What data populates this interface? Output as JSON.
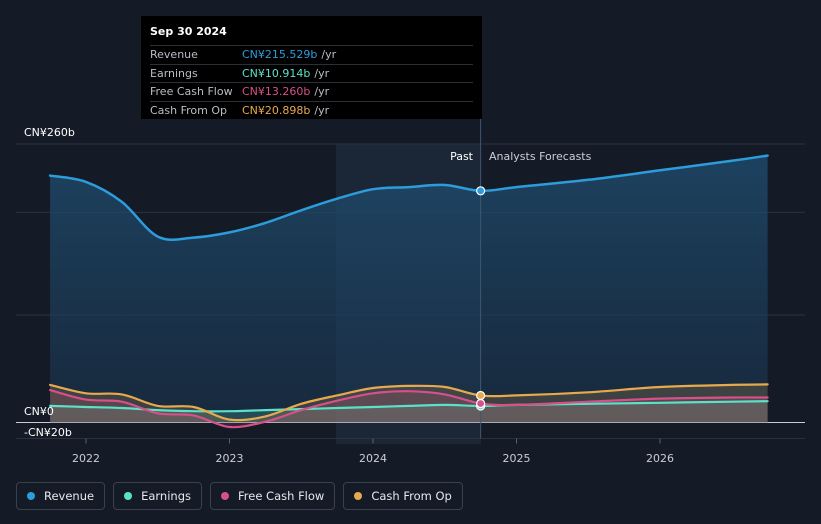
{
  "tooltip": {
    "date": "Sep 30 2024",
    "rows": [
      {
        "label": "Revenue",
        "value": "CN¥215.529b",
        "unit": "/yr",
        "color": "#2d9cdb"
      },
      {
        "label": "Earnings",
        "value": "CN¥10.914b",
        "unit": "/yr",
        "color": "#5ce1c9"
      },
      {
        "label": "Free Cash Flow",
        "value": "CN¥13.260b",
        "unit": "/yr",
        "color": "#d6508a"
      },
      {
        "label": "Cash From Op",
        "value": "CN¥20.898b",
        "unit": "/yr",
        "color": "#e8a94e"
      }
    ]
  },
  "chart_data": {
    "type": "line",
    "y_top_label": "CN¥260b",
    "y_zero_label": "CN¥0",
    "y_neg_label": "-CN¥20b",
    "ylim": [
      -20,
      260
    ],
    "past_label": "Past",
    "forecast_label": "Analysts Forecasts",
    "divider_x": 2024.75,
    "x_ticks": [
      {
        "value": 2022,
        "label": "2022"
      },
      {
        "value": 2023,
        "label": "2023"
      },
      {
        "value": 2024,
        "label": "2024"
      },
      {
        "value": 2025,
        "label": "2025"
      },
      {
        "value": 2026,
        "label": "2026"
      }
    ],
    "series": [
      {
        "name": "Revenue",
        "color": "#2d9cdb",
        "points": [
          [
            2021.75,
            230
          ],
          [
            2022.0,
            224
          ],
          [
            2022.25,
            205
          ],
          [
            2022.5,
            172
          ],
          [
            2022.75,
            171
          ],
          [
            2023.0,
            176
          ],
          [
            2023.25,
            185
          ],
          [
            2023.5,
            197
          ],
          [
            2023.75,
            208
          ],
          [
            2024.0,
            217
          ],
          [
            2024.25,
            219
          ],
          [
            2024.5,
            221
          ],
          [
            2024.75,
            215.5
          ],
          [
            2025.0,
            219
          ],
          [
            2025.5,
            226
          ],
          [
            2026.0,
            235
          ],
          [
            2026.5,
            244
          ],
          [
            2026.75,
            249
          ]
        ]
      },
      {
        "name": "Earnings",
        "color": "#5ce1c9",
        "points": [
          [
            2021.75,
            11
          ],
          [
            2022.0,
            10
          ],
          [
            2022.25,
            9
          ],
          [
            2022.5,
            7
          ],
          [
            2022.75,
            6
          ],
          [
            2023.0,
            6
          ],
          [
            2023.25,
            7
          ],
          [
            2023.5,
            8
          ],
          [
            2023.75,
            9
          ],
          [
            2024.0,
            10
          ],
          [
            2024.25,
            11
          ],
          [
            2024.5,
            12
          ],
          [
            2024.75,
            10.9
          ],
          [
            2025.0,
            12
          ],
          [
            2025.5,
            13
          ],
          [
            2026.0,
            14
          ],
          [
            2026.5,
            15
          ],
          [
            2026.75,
            15.5
          ]
        ]
      },
      {
        "name": "Free Cash Flow",
        "color": "#d6508a",
        "points": [
          [
            2021.75,
            26
          ],
          [
            2022.0,
            17
          ],
          [
            2022.25,
            15
          ],
          [
            2022.5,
            4
          ],
          [
            2022.75,
            2
          ],
          [
            2023.0,
            -9
          ],
          [
            2023.25,
            -4
          ],
          [
            2023.5,
            7
          ],
          [
            2023.75,
            16
          ],
          [
            2024.0,
            23
          ],
          [
            2024.25,
            25
          ],
          [
            2024.5,
            22
          ],
          [
            2024.75,
            13.3
          ],
          [
            2025.0,
            12
          ],
          [
            2025.5,
            15
          ],
          [
            2026.0,
            18
          ],
          [
            2026.5,
            19
          ],
          [
            2026.75,
            19
          ]
        ]
      },
      {
        "name": "Cash From Op",
        "color": "#e8a94e",
        "points": [
          [
            2021.75,
            31
          ],
          [
            2022.0,
            23
          ],
          [
            2022.25,
            22
          ],
          [
            2022.5,
            11
          ],
          [
            2022.75,
            10
          ],
          [
            2023.0,
            -2
          ],
          [
            2023.25,
            1
          ],
          [
            2023.5,
            13
          ],
          [
            2023.75,
            21
          ],
          [
            2024.0,
            28
          ],
          [
            2024.25,
            30
          ],
          [
            2024.5,
            29
          ],
          [
            2024.75,
            20.9
          ],
          [
            2025.0,
            21
          ],
          [
            2025.5,
            24
          ],
          [
            2026.0,
            29
          ],
          [
            2026.5,
            31
          ],
          [
            2026.75,
            31.5
          ]
        ]
      }
    ]
  },
  "legend": [
    {
      "label": "Revenue",
      "color": "#2d9cdb"
    },
    {
      "label": "Earnings",
      "color": "#5ce1c9"
    },
    {
      "label": "Free Cash Flow",
      "color": "#d6508a"
    },
    {
      "label": "Cash From Op",
      "color": "#e8a94e"
    }
  ]
}
